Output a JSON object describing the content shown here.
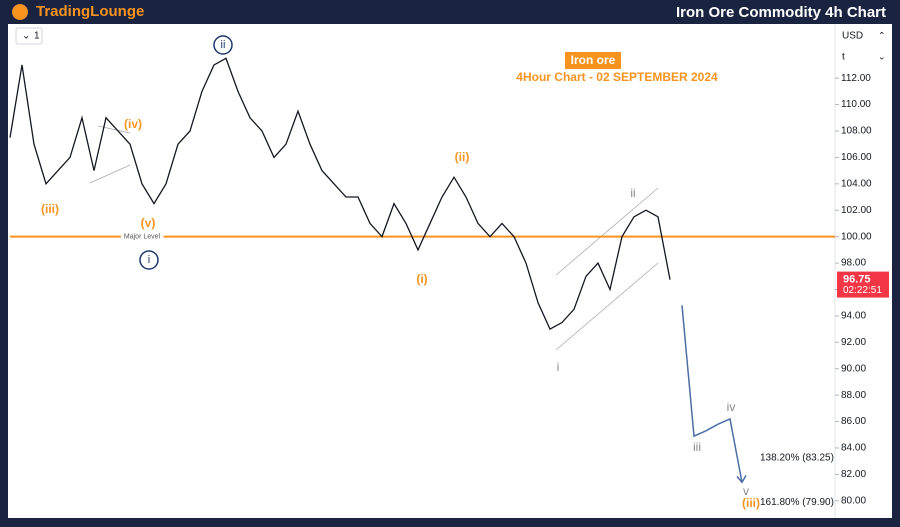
{
  "header": {
    "logo": "TradingLounge",
    "title": "Iron Ore Commodity 4h Chart"
  },
  "toolbar": {
    "interval": "1",
    "currency": "USD",
    "scale_mode": "t"
  },
  "chart_data": {
    "type": "line",
    "title": "Iron ore",
    "subtitle": "4Hour Chart - 02 SEPTEMBER 2024",
    "categories": [
      null,
      null,
      null,
      null,
      null,
      null,
      null,
      null,
      null,
      null,
      null,
      null,
      null,
      null,
      null,
      null,
      null,
      null,
      null,
      null,
      null,
      null,
      null,
      null,
      null,
      null,
      null,
      null,
      null,
      null,
      null,
      null,
      null,
      null,
      null,
      null,
      null,
      null,
      null,
      null,
      null,
      null,
      null,
      null,
      null,
      null,
      null,
      null,
      null,
      null,
      null,
      null,
      null,
      null,
      null,
      null,
      null,
      null,
      null,
      null,
      null,
      null
    ],
    "series": [
      {
        "name": "Iron ore",
        "color": "#131722",
        "values": [
          107.5,
          113,
          107,
          104,
          105,
          106,
          109,
          105,
          109,
          108,
          107,
          104,
          102.5,
          104,
          107,
          108,
          111,
          113,
          113.5,
          111,
          109,
          108,
          106,
          107,
          109.5,
          107,
          105,
          104,
          103,
          103,
          101,
          100,
          102.5,
          101,
          99,
          101,
          103,
          104.5,
          103,
          101,
          100,
          101,
          100,
          98,
          95,
          93,
          93.5,
          94.5,
          97,
          98,
          96,
          100,
          101.5,
          102,
          101.5,
          96.75,
          null,
          null,
          null,
          null,
          null,
          null
        ]
      },
      {
        "name": "Projection",
        "color": "#4a6fa5",
        "values": [
          null,
          null,
          null,
          null,
          null,
          null,
          null,
          null,
          null,
          null,
          null,
          null,
          null,
          null,
          null,
          null,
          null,
          null,
          null,
          null,
          null,
          null,
          null,
          null,
          null,
          null,
          null,
          null,
          null,
          null,
          null,
          null,
          null,
          null,
          null,
          null,
          null,
          null,
          null,
          null,
          null,
          null,
          null,
          null,
          null,
          null,
          null,
          null,
          null,
          null,
          null,
          null,
          null,
          null,
          null,
          null,
          94.8,
          84.9,
          85.3,
          85.8,
          86.2,
          81.4
        ]
      }
    ],
    "ylim": [
      78.7,
      116.1
    ],
    "yticks": [
      {
        "value": 80,
        "label": "80.00"
      },
      {
        "value": 82,
        "label": "82.00"
      },
      {
        "value": 84,
        "label": "84.00"
      },
      {
        "value": 86,
        "label": "86.00"
      },
      {
        "value": 88,
        "label": "88.00"
      },
      {
        "value": 90,
        "label": "90.00"
      },
      {
        "value": 92,
        "label": "92.00"
      },
      {
        "value": 94,
        "label": "94.00"
      },
      {
        "value": 96,
        "label": "96.00"
      },
      {
        "value": 98,
        "label": "98.00"
      },
      {
        "value": 100,
        "label": "100.00"
      },
      {
        "value": 102,
        "label": "102.00"
      },
      {
        "value": 104,
        "label": "104.00"
      },
      {
        "value": 106,
        "label": "106.00"
      },
      {
        "value": 108,
        "label": "108.00"
      },
      {
        "value": 110,
        "label": "110.00"
      },
      {
        "value": 112,
        "label": "112.00"
      }
    ],
    "major_level": {
      "value": 100,
      "label": "Major Level",
      "color": "#f7931e"
    },
    "last_price": {
      "value": 96.75,
      "label": "96.75",
      "countdown": "02:22:51",
      "color": "#f23645"
    },
    "annotations": [
      "(iii)",
      "(iv)",
      "(v)",
      "ii",
      "i",
      "(i)",
      "(ii)",
      "ii",
      "i",
      "iii",
      "iv",
      "v",
      "(iii)"
    ],
    "fib_levels": [
      {
        "value": 83.25,
        "label": "138.20% (83.25)"
      },
      {
        "value": 79.9,
        "label": "161.80% (79.90)"
      }
    ]
  }
}
